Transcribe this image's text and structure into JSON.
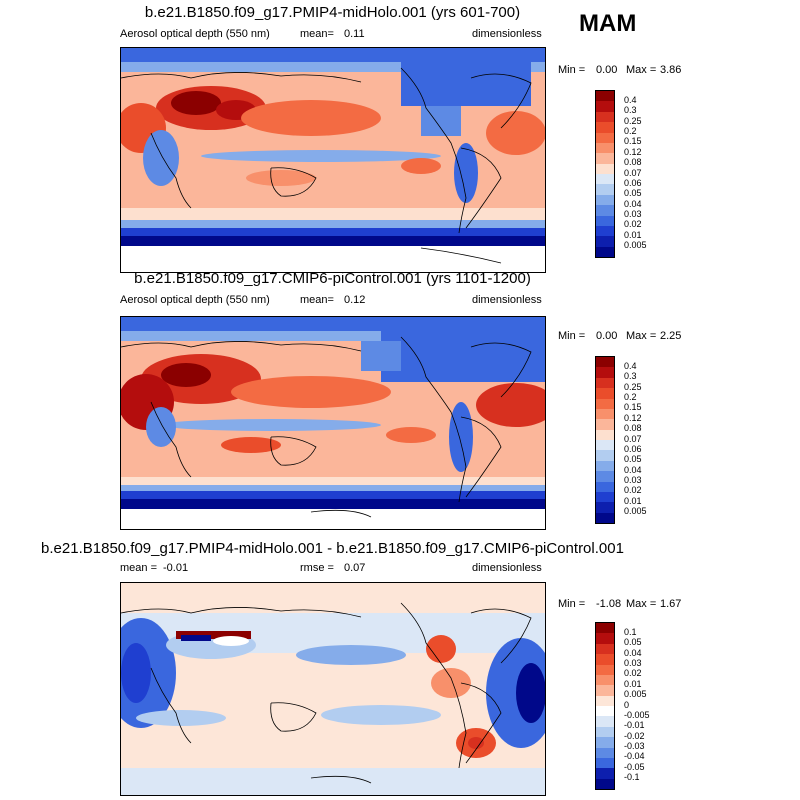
{
  "season": "MAM",
  "panels": [
    {
      "id": "p1",
      "title": "b.e21.B1850.f09_g17.PMIP4-midHolo.001 (yrs 601-700)",
      "left_label": "Aerosol optical depth (550 nm)",
      "mean_label": "mean=",
      "mean_value": "0.11",
      "units": "dimensionless",
      "min_label": "Min =",
      "min_value": "0.00",
      "max_label": "Max =",
      "max_value": "3.86",
      "levels": [
        "0.4",
        "0.3",
        "0.25",
        "0.2",
        "0.15",
        "0.12",
        "0.08",
        "0.07",
        "0.06",
        "0.05",
        "0.04",
        "0.03",
        "0.02",
        "0.01",
        "0.005"
      ],
      "colors": [
        "#8b0000",
        "#b40d0d",
        "#d7301f",
        "#ea4d2b",
        "#f36b43",
        "#f8906b",
        "#fbb69a",
        "#fde0cf",
        "#dbe7f6",
        "#b2cdf0",
        "#85acea",
        "#5d8ae4",
        "#3a67de",
        "#1f3fd0",
        "#0d1fae",
        "#00088a"
      ]
    },
    {
      "id": "p2",
      "title": "b.e21.B1850.f09_g17.CMIP6-piControl.001 (yrs 1101-1200)",
      "left_label": "Aerosol optical depth (550 nm)",
      "mean_label": "mean=",
      "mean_value": "0.12",
      "units": "dimensionless",
      "min_label": "Min =",
      "min_value": "0.00",
      "max_label": "Max =",
      "max_value": "2.25",
      "levels": [
        "0.4",
        "0.3",
        "0.25",
        "0.2",
        "0.15",
        "0.12",
        "0.08",
        "0.07",
        "0.06",
        "0.05",
        "0.04",
        "0.03",
        "0.02",
        "0.01",
        "0.005"
      ],
      "colors": [
        "#8b0000",
        "#b40d0d",
        "#d7301f",
        "#ea4d2b",
        "#f36b43",
        "#f8906b",
        "#fbb69a",
        "#fde0cf",
        "#dbe7f6",
        "#b2cdf0",
        "#85acea",
        "#5d8ae4",
        "#3a67de",
        "#1f3fd0",
        "#0d1fae",
        "#00088a"
      ]
    },
    {
      "id": "p3",
      "title": "b.e21.B1850.f09_g17.PMIP4-midHolo.001 - b.e21.B1850.f09_g17.CMIP6-piControl.001",
      "left_label": "mean =",
      "left_value": "-0.01",
      "mean_label": "rmse =",
      "mean_value": "0.07",
      "units": "dimensionless",
      "min_label": "Min =",
      "min_value": "-1.08",
      "max_label": "Max =",
      "max_value": "1.67",
      "levels": [
        "0.1",
        "0.05",
        "0.04",
        "0.03",
        "0.02",
        "0.01",
        "0.005",
        "0",
        "-0.005",
        "-0.01",
        "-0.02",
        "-0.03",
        "-0.04",
        "-0.05",
        "-0.1"
      ],
      "colors": [
        "#8b0000",
        "#b40d0d",
        "#d7301f",
        "#ea4d2b",
        "#f36b43",
        "#f8906b",
        "#fbb69a",
        "#fde6d8",
        "#ffffff",
        "#dbe7f6",
        "#b2cdf0",
        "#85acea",
        "#5d8ae4",
        "#3a67de",
        "#0d1fae",
        "#00088a"
      ]
    }
  ],
  "chart_data": [
    {
      "type": "heatmap",
      "title": "b.e21.B1850.f09_g17.PMIP4-midHolo.001 (yrs 601-700)",
      "variable": "Aerosol optical depth (550 nm)",
      "units": "dimensionless",
      "season": "MAM",
      "mean": 0.11,
      "min": 0.0,
      "max": 3.86,
      "contour_levels": [
        0.005,
        0.01,
        0.02,
        0.03,
        0.04,
        0.05,
        0.06,
        0.07,
        0.08,
        0.12,
        0.15,
        0.2,
        0.25,
        0.3,
        0.4
      ]
    },
    {
      "type": "heatmap",
      "title": "b.e21.B1850.f09_g17.CMIP6-piControl.001 (yrs 1101-1200)",
      "variable": "Aerosol optical depth (550 nm)",
      "units": "dimensionless",
      "season": "MAM",
      "mean": 0.12,
      "min": 0.0,
      "max": 2.25,
      "contour_levels": [
        0.005,
        0.01,
        0.02,
        0.03,
        0.04,
        0.05,
        0.06,
        0.07,
        0.08,
        0.12,
        0.15,
        0.2,
        0.25,
        0.3,
        0.4
      ]
    },
    {
      "type": "heatmap",
      "title": "b.e21.B1850.f09_g17.PMIP4-midHolo.001 - b.e21.B1850.f09_g17.CMIP6-piControl.001",
      "units": "dimensionless",
      "season": "MAM",
      "mean": -0.01,
      "rmse": 0.07,
      "min": -1.08,
      "max": 1.67,
      "contour_levels": [
        -0.1,
        -0.05,
        -0.04,
        -0.03,
        -0.02,
        -0.01,
        -0.005,
        0,
        0.005,
        0.01,
        0.02,
        0.03,
        0.04,
        0.05,
        0.1
      ]
    }
  ]
}
